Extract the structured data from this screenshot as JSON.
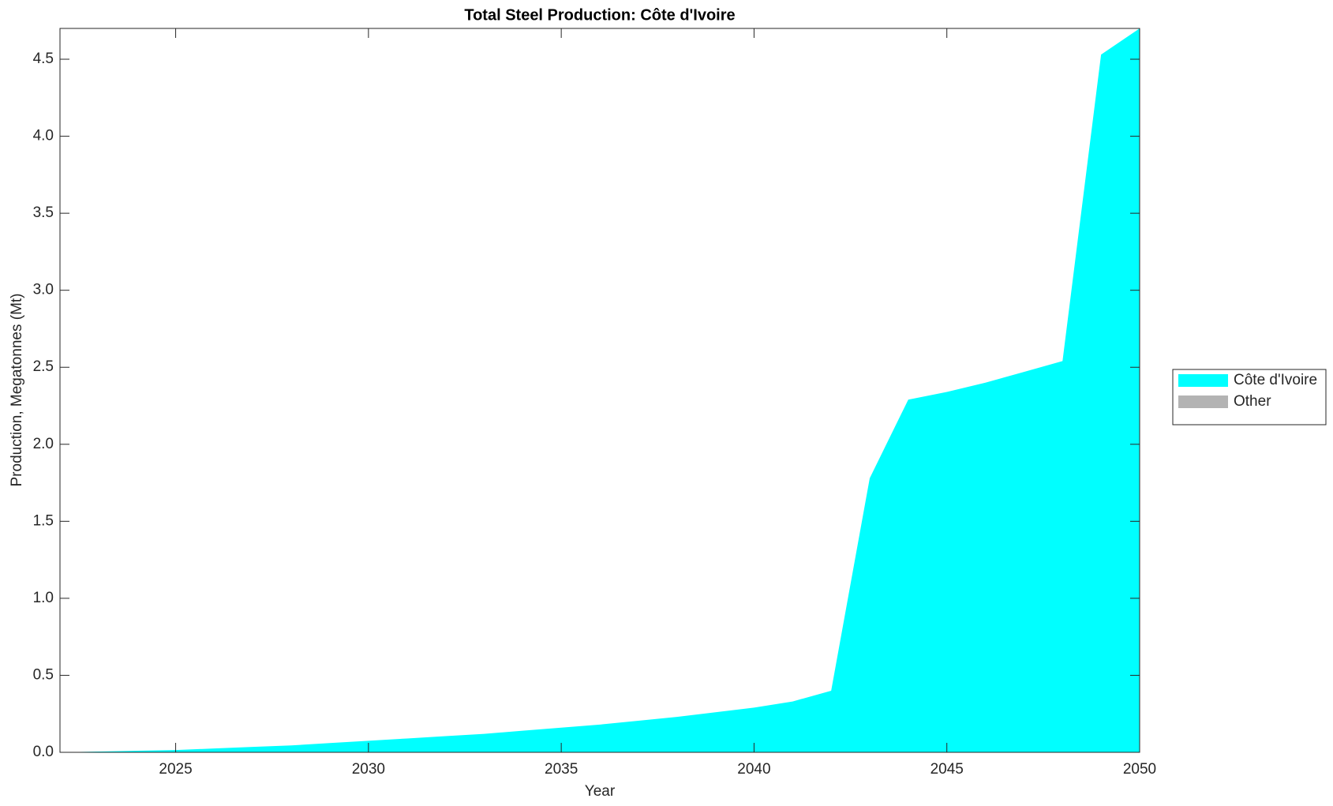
{
  "chart_data": {
    "type": "area",
    "stacked": true,
    "title": "Total Steel Production: Côte d'Ivoire",
    "x_label": "Year",
    "y_label": "Production, Megatonnes (Mt)",
    "x": [
      2022,
      2023,
      2024,
      2025,
      2026,
      2027,
      2028,
      2029,
      2030,
      2031,
      2032,
      2033,
      2034,
      2035,
      2036,
      2037,
      2038,
      2039,
      2040,
      2041,
      2042,
      2043,
      2044,
      2045,
      2046,
      2047,
      2048,
      2049,
      2050
    ],
    "series": [
      {
        "name": "Côte d'Ivoire",
        "color": "#00ffff",
        "values": [
          0,
          0.005,
          0.01,
          0.015,
          0.025,
          0.035,
          0.045,
          0.06,
          0.075,
          0.09,
          0.105,
          0.12,
          0.14,
          0.16,
          0.18,
          0.205,
          0.23,
          0.26,
          0.29,
          0.33,
          0.4,
          1.78,
          2.29,
          2.34,
          2.4,
          2.47,
          2.54,
          4.53,
          4.7
        ]
      },
      {
        "name": "Other",
        "color": "#b3b3b3",
        "values": [
          0,
          0,
          0,
          0,
          0,
          0,
          0,
          0,
          0,
          0,
          0,
          0,
          0,
          0,
          0,
          0,
          0,
          0,
          0,
          0,
          0,
          0,
          0,
          0,
          0,
          0,
          0,
          0,
          0
        ]
      }
    ],
    "xlim": [
      2022,
      2050
    ],
    "xticks": [
      2025,
      2030,
      2035,
      2040,
      2045,
      2050
    ],
    "ylim": [
      0,
      4.7
    ],
    "yticks": [
      {
        "value": 0,
        "label": "0.0"
      },
      0.5,
      {
        "value": 1,
        "label": "1.0"
      },
      1.5,
      {
        "value": 2,
        "label": "2.0"
      },
      2.5,
      {
        "value": 3,
        "label": "3.0"
      },
      3.5,
      {
        "value": 4,
        "label": "4.0"
      },
      4.5
    ],
    "grid": false,
    "legend": "right"
  }
}
